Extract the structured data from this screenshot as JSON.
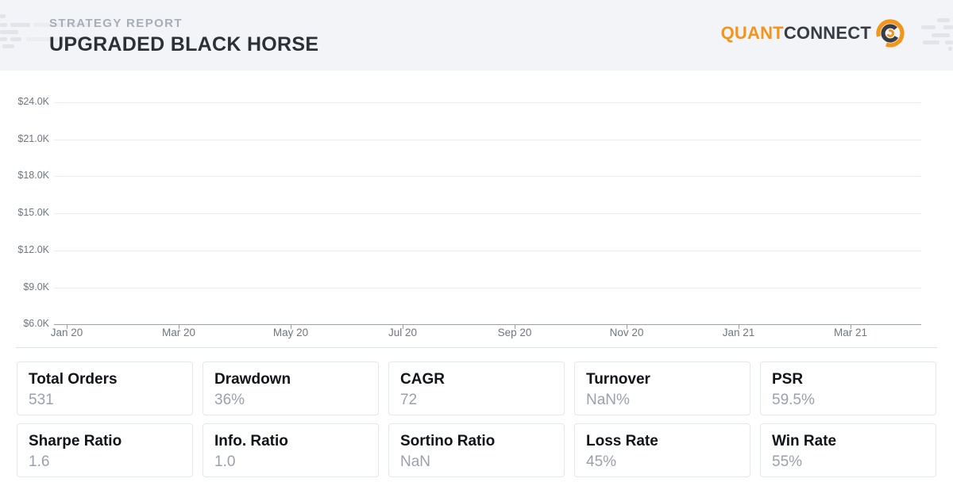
{
  "header": {
    "report_type": "STRATEGY REPORT",
    "strategy_name": "UPGRADED BLACK HORSE",
    "logo": {
      "quant": "QUANT",
      "connect": "CONNECT"
    }
  },
  "colors": {
    "brand_orange": "#F2951C",
    "brand_dark": "#383D44",
    "header_bg": "#F3F4F7",
    "grid_line": "#E9EDF2",
    "axis_line": "#9AA1AB",
    "axis_text": "#6F7680",
    "card_border": "#E3E7EE",
    "stat_value_text": "#9BA1AC"
  },
  "icons": {
    "logo_mark": "quantconnect-spiral-icon",
    "decorations": [
      "speed-lines-left",
      "speed-lines-right"
    ]
  },
  "chart_data": {
    "type": "line",
    "title": "",
    "series": [],
    "x": [],
    "x_tick_labels": [
      "Jan 20",
      "Mar 20",
      "May 20",
      "Jul 20",
      "Sep 20",
      "Nov 20",
      "Jan 21",
      "Mar 21"
    ],
    "y_tick_labels": [
      "$24.0K",
      "$21.0K",
      "$18.0K",
      "$15.0K",
      "$12.0K",
      "$9.0K",
      "$6.0K"
    ],
    "y_tick_values": [
      24000,
      21000,
      18000,
      15000,
      12000,
      9000,
      6000
    ],
    "ylim": [
      6000,
      24000
    ],
    "grid": "horizontal",
    "legend": "none"
  },
  "stats": {
    "rows": [
      [
        {
          "label": "Total Orders",
          "value": "531"
        },
        {
          "label": "Drawdown",
          "value": "36%"
        },
        {
          "label": "CAGR",
          "value": "72"
        },
        {
          "label": "Turnover",
          "value": "NaN%"
        },
        {
          "label": "PSR",
          "value": "59.5%"
        }
      ],
      [
        {
          "label": "Sharpe Ratio",
          "value": "1.6"
        },
        {
          "label": "Info. Ratio",
          "value": "1.0"
        },
        {
          "label": "Sortino Ratio",
          "value": "NaN"
        },
        {
          "label": "Loss Rate",
          "value": "45%"
        },
        {
          "label": "Win Rate",
          "value": "55%"
        }
      ]
    ]
  }
}
